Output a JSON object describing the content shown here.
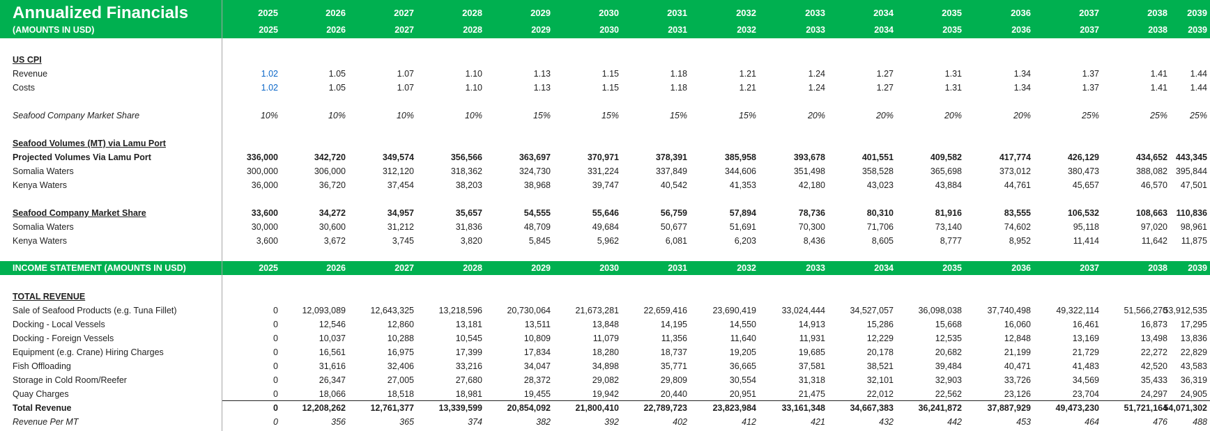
{
  "title": "Annualized Financials",
  "subtitle": "(AMOUNTS IN USD)",
  "years": [
    "2025",
    "2026",
    "2027",
    "2028",
    "2029",
    "2030",
    "2031",
    "2032",
    "2033",
    "2034",
    "2035",
    "2036",
    "2037",
    "2038",
    "2039"
  ],
  "sections": [
    {
      "name": "US CPI",
      "rows": [
        {
          "label": "Revenue",
          "values": [
            "1.02",
            "1.05",
            "1.07",
            "1.10",
            "1.13",
            "1.15",
            "1.18",
            "1.21",
            "1.24",
            "1.27",
            "1.31",
            "1.34",
            "1.37",
            "1.41",
            "1.44"
          ]
        },
        {
          "label": "Costs",
          "values": [
            "1.02",
            "1.05",
            "1.07",
            "1.10",
            "1.13",
            "1.15",
            "1.18",
            "1.21",
            "1.24",
            "1.27",
            "1.31",
            "1.34",
            "1.37",
            "1.41",
            "1.44"
          ]
        },
        {
          "label": "Seafood Company Market Share",
          "values": [
            "10%",
            "10%",
            "10%",
            "10%",
            "15%",
            "15%",
            "15%",
            "15%",
            "20%",
            "20%",
            "20%",
            "20%",
            "25%",
            "25%",
            "25%"
          ]
        }
      ]
    },
    {
      "name": "Seafood Volumes (MT) via Lamu Port",
      "rows": [
        {
          "label": "Projected Volumes Via Lamu Port",
          "values": [
            "336,000",
            "342,720",
            "349,574",
            "356,566",
            "363,697",
            "370,971",
            "378,391",
            "385,958",
            "393,678",
            "401,551",
            "409,582",
            "417,774",
            "426,129",
            "434,652",
            "443,345"
          ]
        },
        {
          "label": "Somalia Waters",
          "values": [
            "300,000",
            "306,000",
            "312,120",
            "318,362",
            "324,730",
            "331,224",
            "337,849",
            "344,606",
            "351,498",
            "358,528",
            "365,698",
            "373,012",
            "380,473",
            "388,082",
            "395,844"
          ]
        },
        {
          "label": "Kenya Waters",
          "values": [
            "36,000",
            "36,720",
            "37,454",
            "38,203",
            "38,968",
            "39,747",
            "40,542",
            "41,353",
            "42,180",
            "43,023",
            "43,884",
            "44,761",
            "45,657",
            "46,570",
            "47,501"
          ]
        }
      ]
    },
    {
      "name": "Seafood Company Market Share",
      "rows": [
        {
          "label": "Seafood Company Market Share",
          "values": [
            "33,600",
            "34,272",
            "34,957",
            "35,657",
            "54,555",
            "55,646",
            "56,759",
            "57,894",
            "78,736",
            "80,310",
            "81,916",
            "83,555",
            "106,532",
            "108,663",
            "110,836"
          ]
        },
        {
          "label": "Somalia Waters",
          "values": [
            "30,000",
            "30,600",
            "31,212",
            "31,836",
            "48,709",
            "49,684",
            "50,677",
            "51,691",
            "70,300",
            "71,706",
            "73,140",
            "74,602",
            "95,118",
            "97,020",
            "98,961"
          ]
        },
        {
          "label": "Kenya Waters",
          "values": [
            "3,600",
            "3,672",
            "3,745",
            "3,820",
            "5,845",
            "5,962",
            "6,081",
            "6,203",
            "8,436",
            "8,605",
            "8,777",
            "8,952",
            "11,414",
            "11,642",
            "11,875"
          ]
        }
      ]
    }
  ],
  "income_header": "INCOME STATEMENT (AMOUNTS IN USD)",
  "revenue": {
    "name": "TOTAL REVENUE",
    "rows": [
      {
        "label": "Sale of Seafood Products (e.g. Tuna Fillet)",
        "values": [
          "0",
          "12,093,089",
          "12,643,325",
          "13,218,596",
          "20,730,064",
          "21,673,281",
          "22,659,416",
          "23,690,419",
          "33,024,444",
          "34,527,057",
          "36,098,038",
          "37,740,498",
          "49,322,114",
          "51,566,270",
          "53,912,535"
        ]
      },
      {
        "label": "Docking - Local Vessels",
        "values": [
          "0",
          "12,546",
          "12,860",
          "13,181",
          "13,511",
          "13,848",
          "14,195",
          "14,550",
          "14,913",
          "15,286",
          "15,668",
          "16,060",
          "16,461",
          "16,873",
          "17,295"
        ]
      },
      {
        "label": "Docking - Foreign Vessels",
        "values": [
          "0",
          "10,037",
          "10,288",
          "10,545",
          "10,809",
          "11,079",
          "11,356",
          "11,640",
          "11,931",
          "12,229",
          "12,535",
          "12,848",
          "13,169",
          "13,498",
          "13,836"
        ]
      },
      {
        "label": "Equipment (e.g. Crane) Hiring Charges",
        "values": [
          "0",
          "16,561",
          "16,975",
          "17,399",
          "17,834",
          "18,280",
          "18,737",
          "19,205",
          "19,685",
          "20,178",
          "20,682",
          "21,199",
          "21,729",
          "22,272",
          "22,829"
        ]
      },
      {
        "label": "Fish Offloading",
        "values": [
          "0",
          "31,616",
          "32,406",
          "33,216",
          "34,047",
          "34,898",
          "35,771",
          "36,665",
          "37,581",
          "38,521",
          "39,484",
          "40,471",
          "41,483",
          "42,520",
          "43,583"
        ]
      },
      {
        "label": "Storage in Cold Room/Reefer",
        "values": [
          "0",
          "26,347",
          "27,005",
          "27,680",
          "28,372",
          "29,082",
          "29,809",
          "30,554",
          "31,318",
          "32,101",
          "32,903",
          "33,726",
          "34,569",
          "35,433",
          "36,319"
        ]
      },
      {
        "label": "Quay Charges",
        "values": [
          "0",
          "18,066",
          "18,518",
          "18,981",
          "19,455",
          "19,942",
          "20,440",
          "20,951",
          "21,475",
          "22,012",
          "22,562",
          "23,126",
          "23,704",
          "24,297",
          "24,905"
        ]
      }
    ],
    "total": {
      "label": "Total Revenue",
      "values": [
        "0",
        "12,208,262",
        "12,761,377",
        "13,339,599",
        "20,854,092",
        "21,800,410",
        "22,789,723",
        "23,823,984",
        "33,161,348",
        "34,667,383",
        "36,241,872",
        "37,887,929",
        "49,473,230",
        "51,721,164",
        "54,071,302"
      ]
    },
    "per_mt": {
      "label": "Revenue Per MT",
      "values": [
        "0",
        "356",
        "365",
        "374",
        "382",
        "392",
        "402",
        "412",
        "421",
        "432",
        "442",
        "453",
        "464",
        "476",
        "488"
      ]
    }
  }
}
